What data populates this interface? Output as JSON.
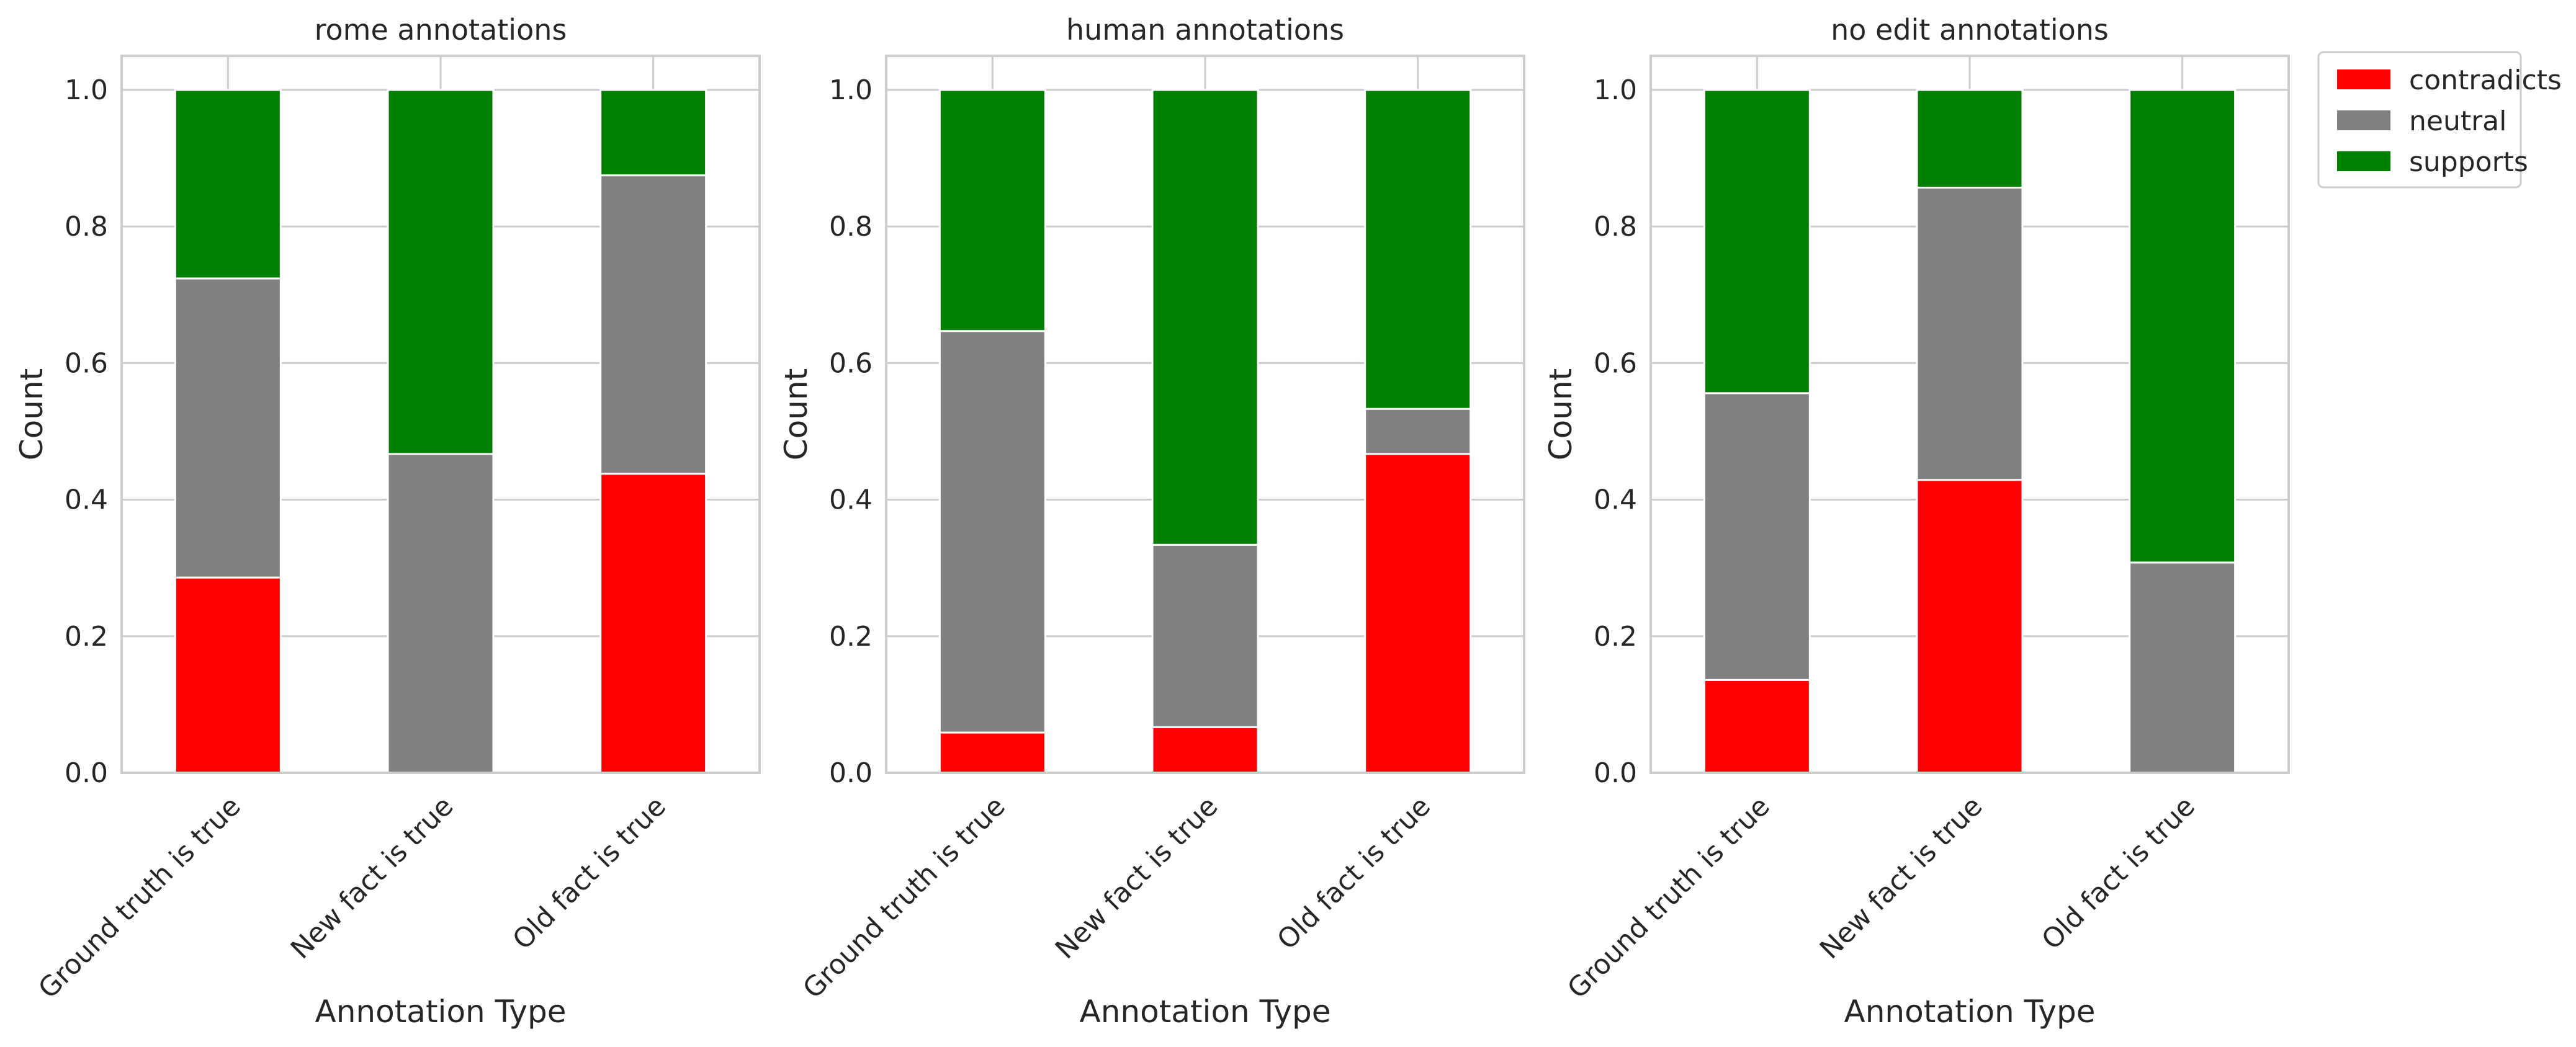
{
  "chart_data": [
    {
      "type": "bar",
      "stacked": true,
      "title": "rome annotations",
      "xlabel": "Annotation Type",
      "ylabel": "Count",
      "ylim": [
        0,
        1.05
      ],
      "yticks": [
        "0.0",
        "0.2",
        "0.4",
        "0.6",
        "0.8",
        "1.0"
      ],
      "grid": true,
      "categories": [
        "Ground truth is true",
        "New fact is true",
        "Old fact is true"
      ],
      "series": [
        {
          "name": "contradicts",
          "color": "#ff0000",
          "values": [
            0.286,
            0.0,
            0.438
          ]
        },
        {
          "name": "neutral",
          "color": "#808080",
          "values": [
            0.438,
            0.467,
            0.437
          ]
        },
        {
          "name": "supports",
          "color": "#008000",
          "values": [
            0.276,
            0.533,
            0.125
          ]
        }
      ]
    },
    {
      "type": "bar",
      "stacked": true,
      "title": "human annotations",
      "xlabel": "Annotation Type",
      "ylabel": "Count",
      "ylim": [
        0,
        1.05
      ],
      "yticks": [
        "0.0",
        "0.2",
        "0.4",
        "0.6",
        "0.8",
        "1.0"
      ],
      "grid": true,
      "categories": [
        "Ground truth is true",
        "New fact is true",
        "Old fact is true"
      ],
      "series": [
        {
          "name": "contradicts",
          "color": "#ff0000",
          "values": [
            0.059,
            0.067,
            0.467
          ]
        },
        {
          "name": "neutral",
          "color": "#808080",
          "values": [
            0.588,
            0.267,
            0.066
          ]
        },
        {
          "name": "supports",
          "color": "#008000",
          "values": [
            0.353,
            0.666,
            0.467
          ]
        }
      ]
    },
    {
      "type": "bar",
      "stacked": true,
      "title": "no edit annotations",
      "xlabel": "Annotation Type",
      "ylabel": "Count",
      "ylim": [
        0,
        1.05
      ],
      "yticks": [
        "0.0",
        "0.2",
        "0.4",
        "0.6",
        "0.8",
        "1.0"
      ],
      "grid": true,
      "categories": [
        "Ground truth is true",
        "New fact is true",
        "Old fact is true"
      ],
      "series": [
        {
          "name": "contradicts",
          "color": "#ff0000",
          "values": [
            0.136,
            0.429,
            0.0
          ]
        },
        {
          "name": "neutral",
          "color": "#808080",
          "values": [
            0.42,
            0.428,
            0.308
          ]
        },
        {
          "name": "supports",
          "color": "#008000",
          "values": [
            0.444,
            0.143,
            0.692
          ]
        }
      ],
      "legend": {
        "placement": "outside-top-right",
        "entries": [
          "contradicts",
          "neutral",
          "supports"
        ]
      }
    }
  ]
}
